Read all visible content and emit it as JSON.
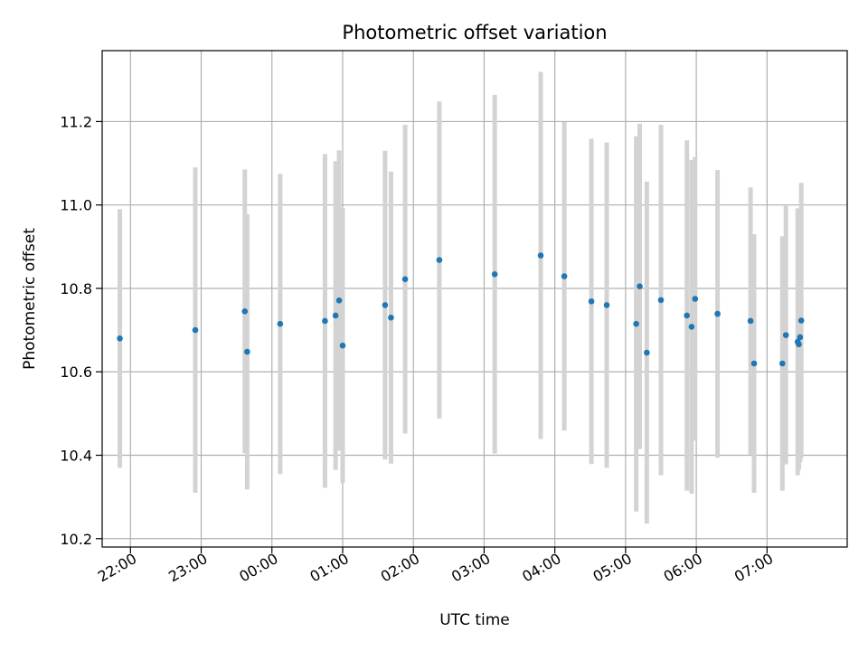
{
  "chart_data": {
    "type": "scatter",
    "title": "Photometric offset variation",
    "xlabel": "UTC time",
    "ylabel": "Photometric offset",
    "grid": true,
    "x_unit": "UTC time (HH:MM)",
    "x_ticks": [
      "22:00",
      "23:00",
      "00:00",
      "01:00",
      "02:00",
      "03:00",
      "04:00",
      "05:00",
      "06:00",
      "07:00"
    ],
    "xlim": [
      "21:36",
      "08:08"
    ],
    "ylim": [
      10.18,
      11.37
    ],
    "y_ticks": [
      10.2,
      10.4,
      10.6,
      10.8,
      11.0,
      11.2
    ],
    "colors": {
      "point": "#1f77b4",
      "errorbar": "#d3d3d3",
      "grid": "#b0b0b0"
    },
    "points": [
      {
        "x": "21:51",
        "y": 10.68,
        "err": 0.31
      },
      {
        "x": "22:55",
        "y": 10.7,
        "err": 0.39
      },
      {
        "x": "23:37",
        "y": 10.745,
        "err": 0.34
      },
      {
        "x": "23:39",
        "y": 10.648,
        "err": 0.33
      },
      {
        "x": "00:07",
        "y": 10.715,
        "err": 0.36
      },
      {
        "x": "00:45",
        "y": 10.722,
        "err": 0.4
      },
      {
        "x": "00:54",
        "y": 10.735,
        "err": 0.37
      },
      {
        "x": "00:57",
        "y": 10.771,
        "err": 0.36
      },
      {
        "x": "01:00",
        "y": 10.663,
        "err": 0.33
      },
      {
        "x": "01:36",
        "y": 10.76,
        "err": 0.37
      },
      {
        "x": "01:41",
        "y": 10.73,
        "err": 0.35
      },
      {
        "x": "01:53",
        "y": 10.822,
        "err": 0.37
      },
      {
        "x": "02:22",
        "y": 10.868,
        "err": 0.38
      },
      {
        "x": "03:09",
        "y": 10.834,
        "err": 0.43
      },
      {
        "x": "03:48",
        "y": 10.879,
        "err": 0.44
      },
      {
        "x": "04:08",
        "y": 10.829,
        "err": 0.37
      },
      {
        "x": "04:31",
        "y": 10.769,
        "err": 0.39
      },
      {
        "x": "04:44",
        "y": 10.76,
        "err": 0.39
      },
      {
        "x": "05:09",
        "y": 10.715,
        "err": 0.45
      },
      {
        "x": "05:12",
        "y": 10.805,
        "err": 0.39
      },
      {
        "x": "05:18",
        "y": 10.646,
        "err": 0.41
      },
      {
        "x": "05:30",
        "y": 10.772,
        "err": 0.42
      },
      {
        "x": "05:52",
        "y": 10.735,
        "err": 0.42
      },
      {
        "x": "05:56",
        "y": 10.708,
        "err": 0.4
      },
      {
        "x": "05:59",
        "y": 10.775,
        "err": 0.34
      },
      {
        "x": "06:18",
        "y": 10.739,
        "err": 0.345
      },
      {
        "x": "06:46",
        "y": 10.722,
        "err": 0.32
      },
      {
        "x": "06:49",
        "y": 10.62,
        "err": 0.31
      },
      {
        "x": "07:13",
        "y": 10.62,
        "err": 0.305
      },
      {
        "x": "07:16",
        "y": 10.688,
        "err": 0.31
      },
      {
        "x": "07:26",
        "y": 10.672,
        "err": 0.32
      },
      {
        "x": "07:27",
        "y": 10.666,
        "err": 0.3
      },
      {
        "x": "07:28",
        "y": 10.683,
        "err": 0.3
      },
      {
        "x": "07:29",
        "y": 10.723,
        "err": 0.33
      }
    ]
  }
}
